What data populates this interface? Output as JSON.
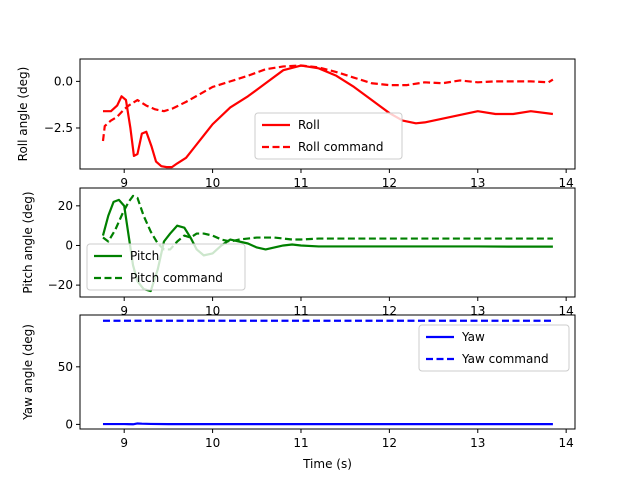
{
  "chart_data": [
    {
      "type": "line",
      "ylabel": "Roll angle (deg)",
      "xlim": [
        8.5,
        14.1
      ],
      "ylim": [
        -4.7,
        1.2
      ],
      "xticks": [
        9,
        10,
        11,
        12,
        13,
        14
      ],
      "xtick_labels": [
        "9",
        "10",
        "11",
        "12",
        "13",
        "14"
      ],
      "yticks": [
        0.0,
        -2.5
      ],
      "ytick_labels": [
        "0.0",
        "−2.5"
      ],
      "legend_position": "lower-center",
      "series": [
        {
          "name": "Roll",
          "color": "#ff0000",
          "style": "solid",
          "x": [
            8.76,
            8.85,
            8.92,
            8.97,
            9.02,
            9.07,
            9.11,
            9.15,
            9.2,
            9.25,
            9.31,
            9.36,
            9.42,
            9.48,
            9.54,
            9.6,
            9.7,
            9.8,
            9.9,
            10.0,
            10.2,
            10.4,
            10.6,
            10.8,
            11.0,
            11.2,
            11.4,
            11.6,
            11.8,
            12.0,
            12.15,
            12.3,
            12.4,
            12.6,
            12.8,
            13.0,
            13.2,
            13.4,
            13.6,
            13.85
          ],
          "y": [
            -1.6,
            -1.6,
            -1.3,
            -0.8,
            -1.0,
            -2.5,
            -4.0,
            -3.9,
            -2.8,
            -2.7,
            -3.5,
            -4.3,
            -4.55,
            -4.6,
            -4.6,
            -4.4,
            -4.1,
            -3.5,
            -2.9,
            -2.3,
            -1.4,
            -0.8,
            -0.1,
            0.6,
            0.85,
            0.7,
            0.3,
            -0.3,
            -1.0,
            -1.7,
            -2.1,
            -2.25,
            -2.2,
            -2.0,
            -1.8,
            -1.6,
            -1.75,
            -1.75,
            -1.6,
            -1.75
          ]
        },
        {
          "name": "Roll command",
          "color": "#ff0000",
          "style": "dashed",
          "x": [
            8.76,
            8.78,
            8.85,
            8.92,
            9.0,
            9.05,
            9.15,
            9.25,
            9.35,
            9.45,
            9.55,
            9.7,
            9.85,
            10.0,
            10.2,
            10.4,
            10.6,
            10.8,
            11.0,
            11.2,
            11.4,
            11.6,
            11.8,
            12.0,
            12.2,
            12.4,
            12.6,
            12.8,
            13.0,
            13.2,
            13.4,
            13.6,
            13.8,
            13.85
          ],
          "y": [
            -3.2,
            -2.4,
            -2.1,
            -1.9,
            -1.5,
            -1.3,
            -1.0,
            -1.3,
            -1.5,
            -1.6,
            -1.45,
            -1.1,
            -0.7,
            -0.3,
            0.0,
            0.3,
            0.65,
            0.8,
            0.85,
            0.75,
            0.5,
            0.2,
            -0.1,
            -0.2,
            -0.2,
            -0.05,
            -0.1,
            0.05,
            -0.05,
            0.0,
            0.0,
            0.0,
            -0.05,
            0.1
          ]
        }
      ]
    },
    {
      "type": "line",
      "ylabel": "Pitch angle (deg)",
      "xlim": [
        8.5,
        14.1
      ],
      "ylim": [
        -26,
        29
      ],
      "xticks": [
        9,
        10,
        11,
        12,
        13,
        14
      ],
      "xtick_labels": [
        "9",
        "10",
        "11",
        "12",
        "13",
        "14"
      ],
      "yticks": [
        20,
        0,
        -20
      ],
      "ytick_labels": [
        "20",
        "0",
        "−20"
      ],
      "legend_position": "lower-left",
      "series": [
        {
          "name": "Pitch",
          "color": "#008000",
          "style": "solid",
          "x": [
            8.76,
            8.82,
            8.88,
            8.94,
            9.0,
            9.05,
            9.1,
            9.15,
            9.22,
            9.3,
            9.38,
            9.45,
            9.52,
            9.6,
            9.68,
            9.75,
            9.82,
            9.9,
            10.0,
            10.1,
            10.2,
            10.3,
            10.4,
            10.5,
            10.6,
            10.7,
            10.8,
            10.9,
            11.0,
            11.2,
            11.5,
            12.0,
            12.5,
            13.0,
            13.5,
            13.85
          ],
          "y": [
            5,
            15,
            22,
            23,
            20,
            5,
            -10,
            -18,
            -22,
            -23,
            -12,
            2,
            6,
            10,
            9,
            4,
            -2,
            -5,
            -4,
            0,
            3,
            2,
            1,
            -1,
            -2,
            -1,
            0,
            0.5,
            0,
            -0.5,
            -0.5,
            -0.5,
            -0.5,
            -0.5,
            -0.6,
            -0.6
          ]
        },
        {
          "name": "Pitch command",
          "color": "#008000",
          "style": "dashed",
          "x": [
            8.76,
            8.82,
            8.9,
            8.98,
            9.05,
            9.1,
            9.15,
            9.22,
            9.3,
            9.38,
            9.45,
            9.52,
            9.6,
            9.68,
            9.75,
            9.82,
            9.9,
            10.0,
            10.1,
            10.2,
            10.3,
            10.5,
            10.7,
            10.9,
            11.0,
            11.2,
            11.5,
            12.0,
            12.5,
            13.0,
            13.5,
            13.85
          ],
          "y": [
            4,
            2,
            8,
            16,
            22,
            25,
            24,
            15,
            7,
            1,
            -2,
            -2,
            2,
            5,
            4,
            6,
            6,
            5,
            3,
            2,
            3,
            4,
            4,
            3,
            3,
            3.5,
            3.5,
            3.5,
            3.5,
            3.5,
            3.5,
            3.5
          ]
        }
      ]
    },
    {
      "type": "line",
      "ylabel": "Yaw angle (deg)",
      "xlabel": "Time (s)",
      "xlim": [
        8.5,
        14.1
      ],
      "ylim": [
        -4,
        95
      ],
      "xticks": [
        9,
        10,
        11,
        12,
        13,
        14
      ],
      "xtick_labels": [
        "9",
        "10",
        "11",
        "12",
        "13",
        "14"
      ],
      "yticks": [
        50,
        0
      ],
      "ytick_labels": [
        "50",
        "0"
      ],
      "legend_position": "upper-right",
      "series": [
        {
          "name": "Yaw",
          "color": "#0000ff",
          "style": "solid",
          "x": [
            8.76,
            9.0,
            9.1,
            9.15,
            9.2,
            9.3,
            9.5,
            10.0,
            11.0,
            12.0,
            13.0,
            13.85
          ],
          "y": [
            0.3,
            0.3,
            0.1,
            0.8,
            0.6,
            0.4,
            0.2,
            0.2,
            0.2,
            0.2,
            0.2,
            0.2
          ]
        },
        {
          "name": "Yaw command",
          "color": "#0000ff",
          "style": "dashed",
          "x": [
            8.76,
            13.85
          ],
          "y": [
            90,
            90
          ]
        }
      ]
    }
  ]
}
